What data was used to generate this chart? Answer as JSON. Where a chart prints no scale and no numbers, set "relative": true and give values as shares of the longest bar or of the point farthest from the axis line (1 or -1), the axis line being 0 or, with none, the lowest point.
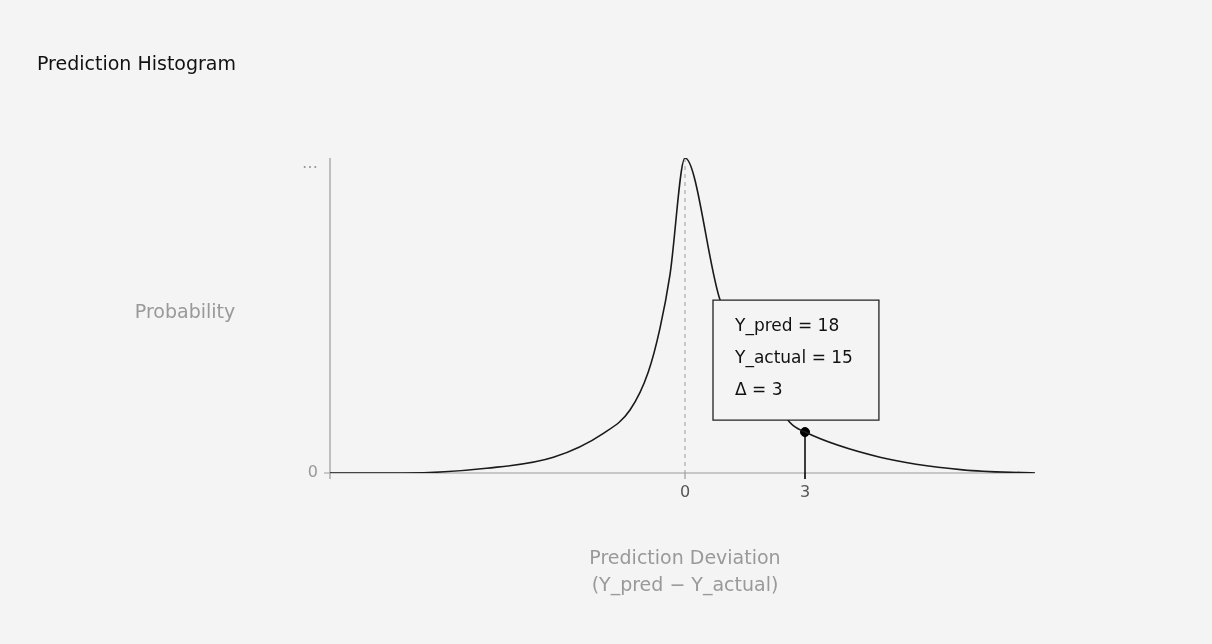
{
  "chart_data": {
    "type": "line",
    "title": "Prediction Histogram",
    "ylabel": "Probability",
    "xlabel": "Prediction Deviation\n(Y_pred − Y_actual)",
    "relative": true,
    "xlim": [
      -8.875,
      8.75
    ],
    "xticks": [
      0,
      3
    ],
    "grid": false,
    "legend": false,
    "series": [
      {
        "type": "line",
        "color": "#1a1a1a",
        "x": [
          -8.875,
          -7.05,
          -4.96,
          -3.29,
          -2.04,
          -1.375,
          -0.92,
          -0.625,
          -0.375,
          0,
          0.875,
          2.625,
          3,
          4.875,
          6.95,
          8.75
        ],
        "values": [
          0,
          0,
          0.015,
          0.05,
          0.126,
          0.2,
          0.32,
          0.46,
          0.63,
          1,
          0.55,
          0.16,
          0.13,
          0.05,
          0.01,
          0
        ]
      },
      {
        "type": "lollipop",
        "color": "#000000",
        "x": [
          3
        ],
        "values": [
          0.13
        ]
      }
    ],
    "ref_lines": [
      {
        "axis": "x",
        "value": 0,
        "line_style": "dashed",
        "color": "#aaaaaa"
      }
    ],
    "annotations": [
      {
        "text": "Y_pred = 18\nY_actual = 15\nΔ = 3",
        "x": 3,
        "y": 0.13
      },
      "0",
      "…"
    ]
  }
}
